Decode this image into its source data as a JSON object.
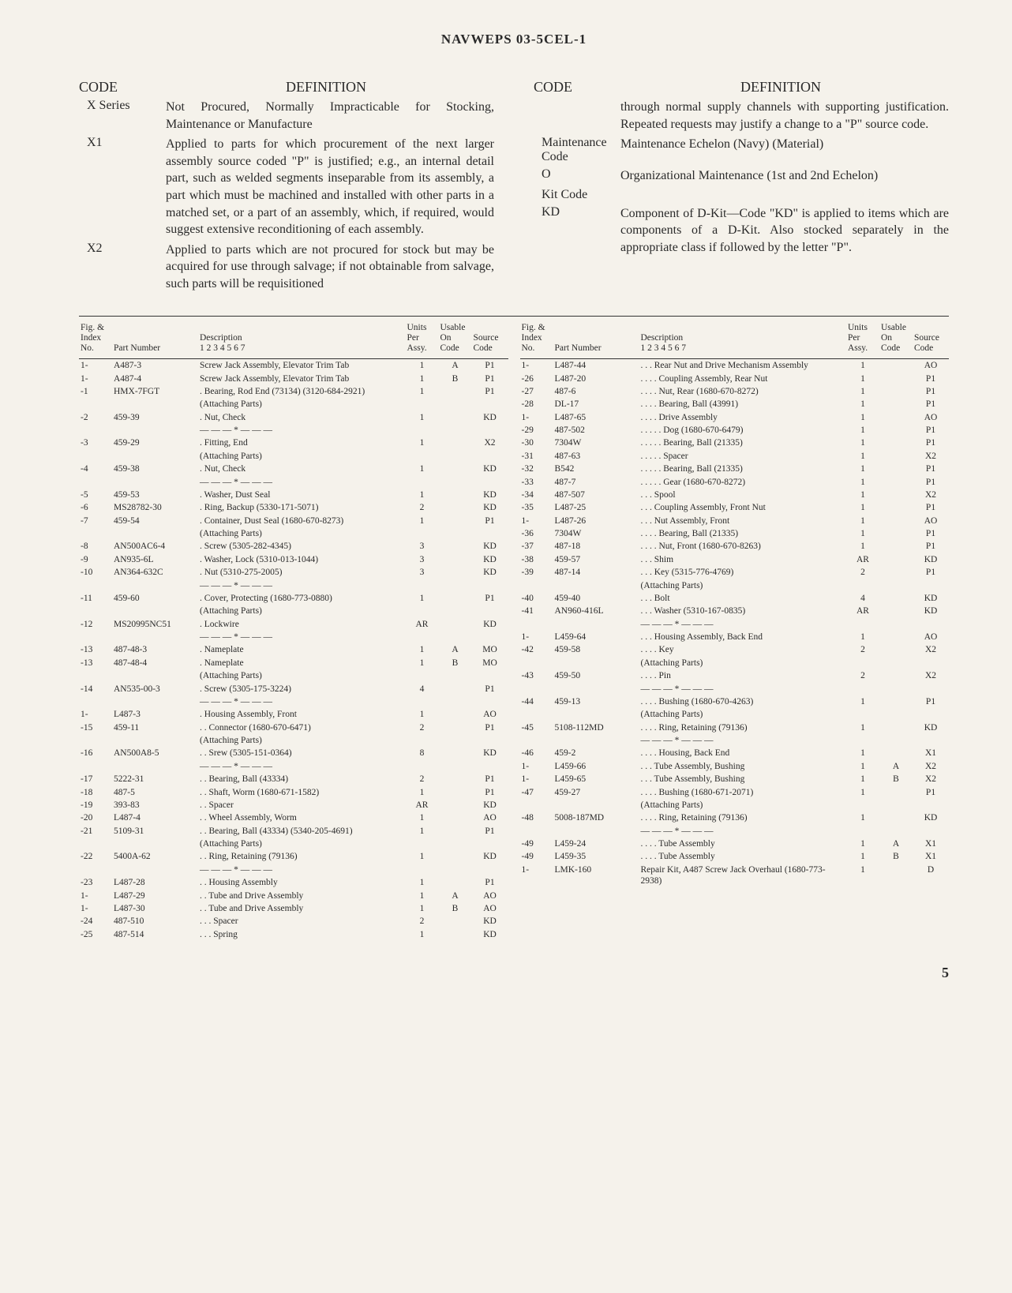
{
  "header": {
    "title": "NAVWEPS 03-5CEL-1"
  },
  "definitions": {
    "left": {
      "headers": {
        "code": "CODE",
        "definition": "DEFINITION"
      },
      "rows": [
        {
          "code": "X Series",
          "text": "Not Procured, Normally Impracticable for Stocking, Maintenance or Manufacture"
        },
        {
          "code": "X1",
          "text": "Applied to parts for which procurement of the next larger assembly source coded \"P\" is justified; e.g., an internal detail part, such as welded segments inseparable from its assembly, a part which must be machined and installed with other parts in a matched set, or a part of an assembly, which, if required, would suggest extensive reconditioning of each assembly."
        },
        {
          "code": "X2",
          "text": "Applied to parts which are not procured for stock but may be acquired for use through salvage; if not obtainable from salvage, such parts will be requisitioned"
        }
      ]
    },
    "right": {
      "headers": {
        "code": "CODE",
        "definition": "DEFINITION"
      },
      "rows": [
        {
          "code": "",
          "text": "through normal supply channels with supporting justification. Repeated requests may justify a change to a \"P\" source code."
        },
        {
          "code": "Maintenance Code",
          "text": "Maintenance Echelon (Navy) (Material)"
        },
        {
          "code": "O",
          "text": "Organizational Maintenance (1st and 2nd Echelon)"
        },
        {
          "code": "Kit Code",
          "text": ""
        },
        {
          "code": "KD",
          "text": "Component of D-Kit—Code \"KD\" is applied to items which are components of a D-Kit. Also stocked separately in the appropriate class if followed by the letter \"P\"."
        }
      ]
    }
  },
  "parts_headers": {
    "idx": "Fig. &\nIndex\nNo.",
    "pn": "Part Number",
    "desc": "Description\n1  2  3  4  5  6  7",
    "units": "Units\nPer\nAssy.",
    "on": "Usable\nOn\nCode",
    "src": "Source\nCode"
  },
  "parts_left": [
    {
      "idx": "1-",
      "pn": "A487-3",
      "desc": "Screw Jack Assembly, Elevator Trim Tab",
      "units": "1",
      "on": "A",
      "src": "P1"
    },
    {
      "idx": "1-",
      "pn": "A487-4",
      "desc": "Screw Jack Assembly, Elevator Trim Tab",
      "units": "1",
      "on": "B",
      "src": "P1"
    },
    {
      "idx": "-1",
      "pn": "HMX-7FGT",
      "desc": ". Bearing, Rod End (73134) (3120-684-2921)",
      "units": "1",
      "on": "",
      "src": "P1"
    },
    {
      "idx": "",
      "pn": "",
      "desc": "(Attaching Parts)",
      "units": "",
      "on": "",
      "src": ""
    },
    {
      "idx": "-2",
      "pn": "459-39",
      "desc": ". Nut, Check",
      "units": "1",
      "on": "",
      "src": "KD"
    },
    {
      "idx": "",
      "pn": "",
      "desc": "— — — * — — —",
      "units": "",
      "on": "",
      "src": ""
    },
    {
      "idx": "-3",
      "pn": "459-29",
      "desc": ". Fitting, End",
      "units": "1",
      "on": "",
      "src": "X2"
    },
    {
      "idx": "",
      "pn": "",
      "desc": "(Attaching Parts)",
      "units": "",
      "on": "",
      "src": ""
    },
    {
      "idx": "-4",
      "pn": "459-38",
      "desc": ". Nut, Check",
      "units": "1",
      "on": "",
      "src": "KD"
    },
    {
      "idx": "",
      "pn": "",
      "desc": "— — — * — — —",
      "units": "",
      "on": "",
      "src": ""
    },
    {
      "idx": "-5",
      "pn": "459-53",
      "desc": ". Washer, Dust Seal",
      "units": "1",
      "on": "",
      "src": "KD"
    },
    {
      "idx": "-6",
      "pn": "MS28782-30",
      "desc": ". Ring, Backup (5330-171-5071)",
      "units": "2",
      "on": "",
      "src": "KD"
    },
    {
      "idx": "-7",
      "pn": "459-54",
      "desc": ". Container, Dust Seal (1680-670-8273)",
      "units": "1",
      "on": "",
      "src": "P1"
    },
    {
      "idx": "",
      "pn": "",
      "desc": "(Attaching Parts)",
      "units": "",
      "on": "",
      "src": ""
    },
    {
      "idx": "-8",
      "pn": "AN500AC6-4",
      "desc": ". Screw (5305-282-4345)",
      "units": "3",
      "on": "",
      "src": "KD"
    },
    {
      "idx": "-9",
      "pn": "AN935-6L",
      "desc": ". Washer, Lock (5310-013-1044)",
      "units": "3",
      "on": "",
      "src": "KD"
    },
    {
      "idx": "-10",
      "pn": "AN364-632C",
      "desc": ". Nut (5310-275-2005)",
      "units": "3",
      "on": "",
      "src": "KD"
    },
    {
      "idx": "",
      "pn": "",
      "desc": "— — — * — — —",
      "units": "",
      "on": "",
      "src": ""
    },
    {
      "idx": "-11",
      "pn": "459-60",
      "desc": ". Cover, Protecting (1680-773-0880)",
      "units": "1",
      "on": "",
      "src": "P1"
    },
    {
      "idx": "",
      "pn": "",
      "desc": "(Attaching Parts)",
      "units": "",
      "on": "",
      "src": ""
    },
    {
      "idx": "-12",
      "pn": "MS20995NC51",
      "desc": ". Lockwire",
      "units": "AR",
      "on": "",
      "src": "KD"
    },
    {
      "idx": "",
      "pn": "",
      "desc": "— — — * — — —",
      "units": "",
      "on": "",
      "src": ""
    },
    {
      "idx": "-13",
      "pn": "487-48-3",
      "desc": ". Nameplate",
      "units": "1",
      "on": "A",
      "src": "MO"
    },
    {
      "idx": "-13",
      "pn": "487-48-4",
      "desc": ". Nameplate",
      "units": "1",
      "on": "B",
      "src": "MO"
    },
    {
      "idx": "",
      "pn": "",
      "desc": "(Attaching Parts)",
      "units": "",
      "on": "",
      "src": ""
    },
    {
      "idx": "-14",
      "pn": "AN535-00-3",
      "desc": ". Screw (5305-175-3224)",
      "units": "4",
      "on": "",
      "src": "P1"
    },
    {
      "idx": "",
      "pn": "",
      "desc": "— — — * — — —",
      "units": "",
      "on": "",
      "src": ""
    },
    {
      "idx": "1-",
      "pn": "L487-3",
      "desc": ". Housing Assembly, Front",
      "units": "1",
      "on": "",
      "src": "AO"
    },
    {
      "idx": "-15",
      "pn": "459-11",
      "desc": ". . Connector (1680-670-6471)",
      "units": "2",
      "on": "",
      "src": "P1"
    },
    {
      "idx": "",
      "pn": "",
      "desc": "(Attaching Parts)",
      "units": "",
      "on": "",
      "src": ""
    },
    {
      "idx": "-16",
      "pn": "AN500A8-5",
      "desc": ". . Srew (5305-151-0364)",
      "units": "8",
      "on": "",
      "src": "KD"
    },
    {
      "idx": "",
      "pn": "",
      "desc": "— — — * — — —",
      "units": "",
      "on": "",
      "src": ""
    },
    {
      "idx": "-17",
      "pn": "5222-31",
      "desc": ". . Bearing, Ball (43334)",
      "units": "2",
      "on": "",
      "src": "P1"
    },
    {
      "idx": "-18",
      "pn": "487-5",
      "desc": ". . Shaft, Worm (1680-671-1582)",
      "units": "1",
      "on": "",
      "src": "P1"
    },
    {
      "idx": "-19",
      "pn": "393-83",
      "desc": ". . Spacer",
      "units": "AR",
      "on": "",
      "src": "KD"
    },
    {
      "idx": "-20",
      "pn": "L487-4",
      "desc": ". . Wheel Assembly, Worm",
      "units": "1",
      "on": "",
      "src": "AO"
    },
    {
      "idx": "-21",
      "pn": "5109-31",
      "desc": ". . Bearing, Ball (43334) (5340-205-4691)",
      "units": "1",
      "on": "",
      "src": "P1"
    },
    {
      "idx": "",
      "pn": "",
      "desc": "(Attaching Parts)",
      "units": "",
      "on": "",
      "src": ""
    },
    {
      "idx": "-22",
      "pn": "5400A-62",
      "desc": ". . Ring, Retaining (79136)",
      "units": "1",
      "on": "",
      "src": "KD"
    },
    {
      "idx": "",
      "pn": "",
      "desc": "— — — * — — —",
      "units": "",
      "on": "",
      "src": ""
    },
    {
      "idx": "-23",
      "pn": "L487-28",
      "desc": ". . Housing Assembly",
      "units": "1",
      "on": "",
      "src": "P1"
    },
    {
      "idx": "1-",
      "pn": "L487-29",
      "desc": ". . Tube and Drive Assembly",
      "units": "1",
      "on": "A",
      "src": "AO"
    },
    {
      "idx": "1-",
      "pn": "L487-30",
      "desc": ". . Tube and Drive Assembly",
      "units": "1",
      "on": "B",
      "src": "AO"
    },
    {
      "idx": "-24",
      "pn": "487-510",
      "desc": ". . . Spacer",
      "units": "2",
      "on": "",
      "src": "KD"
    },
    {
      "idx": "-25",
      "pn": "487-514",
      "desc": ". . . Spring",
      "units": "1",
      "on": "",
      "src": "KD"
    }
  ],
  "parts_right": [
    {
      "idx": "1-",
      "pn": "L487-44",
      "desc": ". . . Rear Nut and Drive Mechanism Assembly",
      "units": "1",
      "on": "",
      "src": "AO"
    },
    {
      "idx": "-26",
      "pn": "L487-20",
      "desc": ". . . . Coupling Assembly, Rear Nut",
      "units": "1",
      "on": "",
      "src": "P1"
    },
    {
      "idx": "-27",
      "pn": "487-6",
      "desc": ". . . . Nut, Rear (1680-670-8272)",
      "units": "1",
      "on": "",
      "src": "P1"
    },
    {
      "idx": "-28",
      "pn": "DL-17",
      "desc": ". . . . Bearing, Ball (43991)",
      "units": "1",
      "on": "",
      "src": "P1"
    },
    {
      "idx": "1-",
      "pn": "L487-65",
      "desc": ". . . . Drive Assembly",
      "units": "1",
      "on": "",
      "src": "AO"
    },
    {
      "idx": "-29",
      "pn": "487-502",
      "desc": ". . . . . Dog (1680-670-6479)",
      "units": "1",
      "on": "",
      "src": "P1"
    },
    {
      "idx": "-30",
      "pn": "7304W",
      "desc": ". . . . . Bearing, Ball (21335)",
      "units": "1",
      "on": "",
      "src": "P1"
    },
    {
      "idx": "-31",
      "pn": "487-63",
      "desc": ". . . . . Spacer",
      "units": "1",
      "on": "",
      "src": "X2"
    },
    {
      "idx": "-32",
      "pn": "B542",
      "desc": ". . . . . Bearing, Ball (21335)",
      "units": "1",
      "on": "",
      "src": "P1"
    },
    {
      "idx": "-33",
      "pn": "487-7",
      "desc": ". . . . . Gear (1680-670-8272)",
      "units": "1",
      "on": "",
      "src": "P1"
    },
    {
      "idx": "-34",
      "pn": "487-507",
      "desc": ". . . Spool",
      "units": "1",
      "on": "",
      "src": "X2"
    },
    {
      "idx": "-35",
      "pn": "L487-25",
      "desc": ". . . Coupling Assembly, Front Nut",
      "units": "1",
      "on": "",
      "src": "P1"
    },
    {
      "idx": "1-",
      "pn": "L487-26",
      "desc": ". . . Nut Assembly, Front",
      "units": "1",
      "on": "",
      "src": "AO"
    },
    {
      "idx": "-36",
      "pn": "7304W",
      "desc": ". . . . Bearing, Ball (21335)",
      "units": "1",
      "on": "",
      "src": "P1"
    },
    {
      "idx": "-37",
      "pn": "487-18",
      "desc": ". . . . Nut, Front (1680-670-8263)",
      "units": "1",
      "on": "",
      "src": "P1"
    },
    {
      "idx": "-38",
      "pn": "459-57",
      "desc": ". . . Shim",
      "units": "AR",
      "on": "",
      "src": "KD"
    },
    {
      "idx": "-39",
      "pn": "487-14",
      "desc": ". . . Key (5315-776-4769)",
      "units": "2",
      "on": "",
      "src": "P1"
    },
    {
      "idx": "",
      "pn": "",
      "desc": "(Attaching Parts)",
      "units": "",
      "on": "",
      "src": ""
    },
    {
      "idx": "-40",
      "pn": "459-40",
      "desc": ". . . Bolt",
      "units": "4",
      "on": "",
      "src": "KD"
    },
    {
      "idx": "-41",
      "pn": "AN960-416L",
      "desc": ". . . Washer (5310-167-0835)",
      "units": "AR",
      "on": "",
      "src": "KD"
    },
    {
      "idx": "",
      "pn": "",
      "desc": "— — — * — — —",
      "units": "",
      "on": "",
      "src": ""
    },
    {
      "idx": "1-",
      "pn": "L459-64",
      "desc": ". . . Housing Assembly, Back End",
      "units": "1",
      "on": "",
      "src": "AO"
    },
    {
      "idx": "-42",
      "pn": "459-58",
      "desc": ". . . . Key",
      "units": "2",
      "on": "",
      "src": "X2"
    },
    {
      "idx": "",
      "pn": "",
      "desc": "(Attaching Parts)",
      "units": "",
      "on": "",
      "src": ""
    },
    {
      "idx": "-43",
      "pn": "459-50",
      "desc": ". . . . Pin",
      "units": "2",
      "on": "",
      "src": "X2"
    },
    {
      "idx": "",
      "pn": "",
      "desc": "— — — * — — —",
      "units": "",
      "on": "",
      "src": ""
    },
    {
      "idx": "-44",
      "pn": "459-13",
      "desc": ". . . . Bushing (1680-670-4263)",
      "units": "1",
      "on": "",
      "src": "P1"
    },
    {
      "idx": "",
      "pn": "",
      "desc": "(Attaching Parts)",
      "units": "",
      "on": "",
      "src": ""
    },
    {
      "idx": "-45",
      "pn": "5108-112MD",
      "desc": ". . . . Ring, Retaining (79136)",
      "units": "1",
      "on": "",
      "src": "KD"
    },
    {
      "idx": "",
      "pn": "",
      "desc": "— — — * — — —",
      "units": "",
      "on": "",
      "src": ""
    },
    {
      "idx": "-46",
      "pn": "459-2",
      "desc": ". . . . Housing, Back End",
      "units": "1",
      "on": "",
      "src": "X1"
    },
    {
      "idx": "1-",
      "pn": "L459-66",
      "desc": ". . . Tube Assembly, Bushing",
      "units": "1",
      "on": "A",
      "src": "X2"
    },
    {
      "idx": "1-",
      "pn": "L459-65",
      "desc": ". . . Tube Assembly, Bushing",
      "units": "1",
      "on": "B",
      "src": "X2"
    },
    {
      "idx": "-47",
      "pn": "459-27",
      "desc": ". . . . Bushing (1680-671-2071)",
      "units": "1",
      "on": "",
      "src": "P1"
    },
    {
      "idx": "",
      "pn": "",
      "desc": "(Attaching Parts)",
      "units": "",
      "on": "",
      "src": ""
    },
    {
      "idx": "-48",
      "pn": "5008-187MD",
      "desc": ". . . . Ring, Retaining (79136)",
      "units": "1",
      "on": "",
      "src": "KD"
    },
    {
      "idx": "",
      "pn": "",
      "desc": "— — — * — — —",
      "units": "",
      "on": "",
      "src": ""
    },
    {
      "idx": "-49",
      "pn": "L459-24",
      "desc": ". . . . Tube Assembly",
      "units": "1",
      "on": "A",
      "src": "X1"
    },
    {
      "idx": "-49",
      "pn": "L459-35",
      "desc": ". . . . Tube Assembly",
      "units": "1",
      "on": "B",
      "src": "X1"
    },
    {
      "idx": "1-",
      "pn": "LMK-160",
      "desc": "Repair Kit, A487 Screw Jack Overhaul (1680-773-2938)",
      "units": "1",
      "on": "",
      "src": "D"
    }
  ],
  "page_number": "5"
}
